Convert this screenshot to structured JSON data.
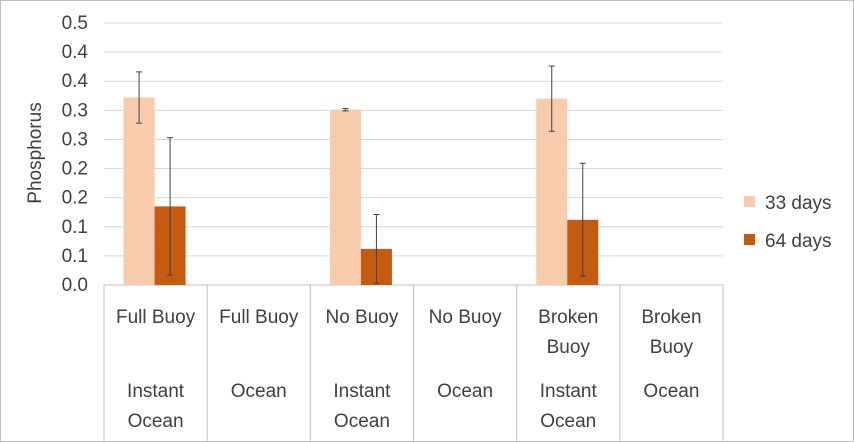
{
  "chart_data": {
    "type": "bar",
    "ylabel": "Phosphorus",
    "xlabel": "",
    "ylim": [
      0,
      0.45
    ],
    "ytick_labels": [
      "0.0",
      "0.1",
      "0.1",
      "0.2",
      "0.2",
      "0.3",
      "0.3",
      "0.4",
      "0.4",
      "0.5"
    ],
    "grid": true,
    "legend_position": "right",
    "categories": [
      {
        "line1": "Full Buoy",
        "line2": "",
        "group": "Instant Ocean"
      },
      {
        "line1": "Full Buoy",
        "line2": "",
        "group": "Ocean"
      },
      {
        "line1": "No Buoy",
        "line2": "",
        "group": "Instant Ocean"
      },
      {
        "line1": "No Buoy",
        "line2": "",
        "group": "Ocean"
      },
      {
        "line1": "Broken",
        "line2": "Buoy",
        "group": "Instant Ocean"
      },
      {
        "line1": "Broken",
        "line2": "Buoy",
        "group": "Ocean"
      }
    ],
    "series": [
      {
        "name": "33 days",
        "color": "#f8cbad",
        "values": [
          0.322,
          null,
          0.301,
          null,
          0.32,
          null
        ],
        "errors": [
          0.044,
          null,
          0.002,
          null,
          0.056,
          null
        ]
      },
      {
        "name": "64 days",
        "color": "#c55a11",
        "values": [
          0.135,
          null,
          0.062,
          null,
          0.112,
          null
        ],
        "errors": [
          0.118,
          null,
          0.059,
          null,
          0.097,
          null
        ]
      }
    ]
  }
}
